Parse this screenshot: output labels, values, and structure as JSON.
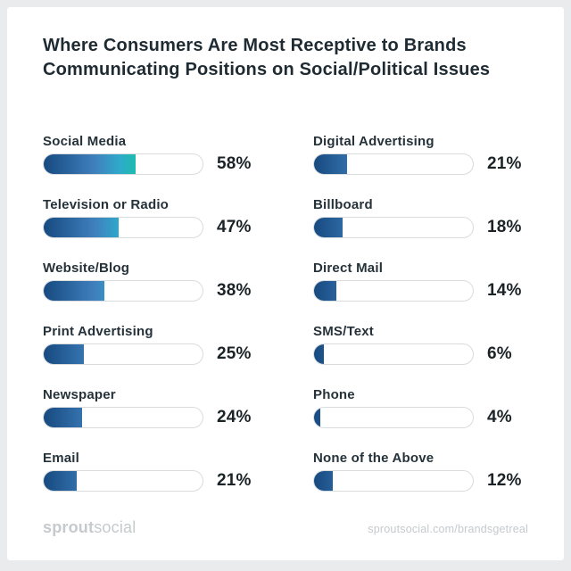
{
  "title": "Where Consumers Are Most Receptive to Brands Communicating Positions on Social/Political Issues",
  "colors": {
    "frame_background": "#e9ebec",
    "card_background": "#ffffff",
    "title_text": "#1f2b33",
    "label_text": "#26323a",
    "value_text": "#1b2327",
    "track_border": "#d9dcdf",
    "track_fill": "#ffffff",
    "bar_gradient_start": "#174a80",
    "bar_gradient_mid": "#3f7fbd",
    "bar_gradient_late": "#2fa9cb",
    "bar_gradient_end": "#1fbcae",
    "footer_text": "#c5cacd"
  },
  "chart_data": {
    "type": "bar",
    "orientation": "horizontal",
    "unit": "%",
    "scale_max": 100,
    "grid": false,
    "legend": false,
    "title": "Where Consumers Are Most Receptive to Brands Communicating Positions on Social/Political Issues",
    "columns": [
      {
        "items": [
          {
            "label": "Social Media",
            "value": 58
          },
          {
            "label": "Television or Radio",
            "value": 47
          },
          {
            "label": "Website/Blog",
            "value": 38
          },
          {
            "label": "Print Advertising",
            "value": 25
          },
          {
            "label": "Newspaper",
            "value": 24
          },
          {
            "label": "Email",
            "value": 21
          }
        ]
      },
      {
        "items": [
          {
            "label": "Digital Advertising",
            "value": 21
          },
          {
            "label": "Billboard",
            "value": 18
          },
          {
            "label": "Direct Mail",
            "value": 14
          },
          {
            "label": "SMS/Text",
            "value": 6
          },
          {
            "label": "Phone",
            "value": 4
          },
          {
            "label": "None of the Above",
            "value": 12
          }
        ]
      }
    ]
  },
  "footer": {
    "logo_bold": "sprout",
    "logo_light": "social",
    "url": "sproutsocial.com/brandsgetreal"
  }
}
